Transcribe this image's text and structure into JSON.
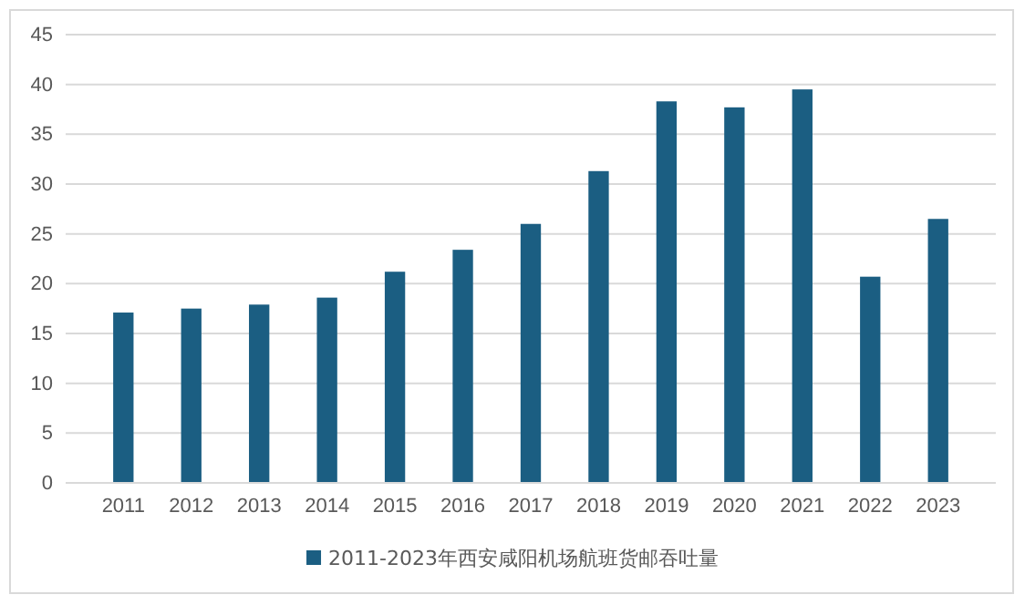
{
  "chart_data": {
    "type": "bar",
    "categories": [
      "2011",
      "2012",
      "2013",
      "2014",
      "2015",
      "2016",
      "2017",
      "2018",
      "2019",
      "2020",
      "2021",
      "2022",
      "2023"
    ],
    "series": [
      {
        "name": "2011-2023年西安咸阳机场航班货邮吞吐量",
        "color": "#1b5e82",
        "values": [
          17.1,
          17.5,
          17.9,
          18.6,
          21.2,
          23.4,
          26.0,
          31.3,
          38.3,
          37.7,
          39.5,
          20.7,
          26.5
        ]
      }
    ],
    "ylim": [
      0,
      45
    ],
    "yticks": [
      0,
      5,
      10,
      15,
      20,
      25,
      30,
      35,
      40,
      45
    ],
    "grid": "y",
    "legend": "bottom"
  }
}
